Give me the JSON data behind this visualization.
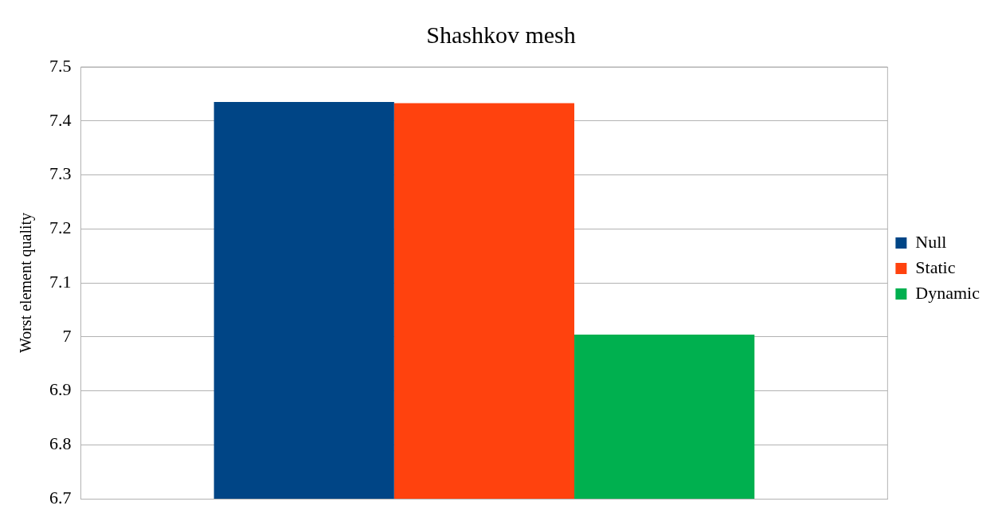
{
  "chart_data": {
    "type": "bar",
    "title": "Shashkov mesh",
    "ylabel": "Worst element quality",
    "categories": [
      null
    ],
    "series": [
      {
        "name": "Null",
        "color": "#004586",
        "values": [
          7.435
        ]
      },
      {
        "name": "Static",
        "color": "#ff420e",
        "values": [
          7.433
        ]
      },
      {
        "name": "Dynamic",
        "color": "#00b04f",
        "values": [
          7.004
        ]
      }
    ],
    "ylim": [
      6.7,
      7.5
    ],
    "yticks": [
      6.7,
      6.8,
      6.9,
      7,
      7.1,
      7.2,
      7.3,
      7.4,
      7.5
    ],
    "grid": "y",
    "legend": "right"
  }
}
